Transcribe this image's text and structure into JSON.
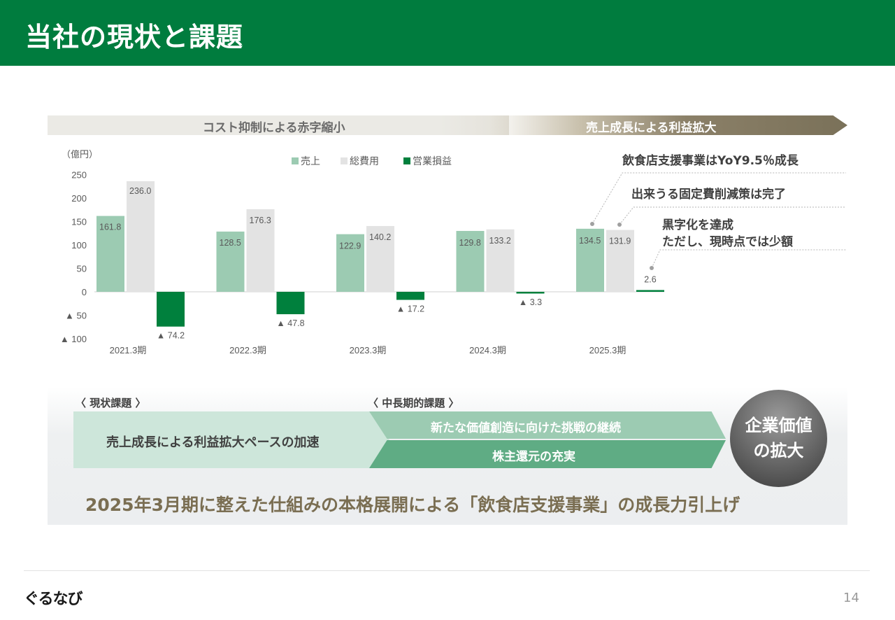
{
  "header": {
    "title": "当社の現状と課題"
  },
  "banner": {
    "left_label": "コスト抑制による赤字縮小",
    "right_label": "売上成長による利益拡大"
  },
  "annotations": {
    "a1": "飲食店支援事業はYoY9.5％成長",
    "a2": "出来うる固定費削減策は完了",
    "a3_line1": "黒字化を達成",
    "a3_line2": "ただし、現時点では少額"
  },
  "panel": {
    "current_issue_label": "〈 現状課題 〉",
    "mid_issue_label": "〈 中長期的課題 〉",
    "box_left": "売上成長による利益拡大ペースの加速",
    "box_top": "新たな価値創造に向けた挑戦の継続",
    "box_bottom": "株主還元の充実",
    "circle_line1": "企業価値",
    "circle_line2": "の拡大",
    "message": "2025年3月期に整えた仕組みの本格展開による「飲食店支援事業」の成長力引上げ"
  },
  "footer": {
    "logo": "ぐるなび",
    "page": "14"
  },
  "colors": {
    "header": "#007c3e",
    "sales": "#9ccbb2",
    "cost": "#e3e3e3",
    "op": "#00803d"
  },
  "chart_data": {
    "type": "bar",
    "unit_label": "（億円）",
    "categories": [
      "2021.3期",
      "2022.3期",
      "2023.3期",
      "2024.3期",
      "2025.3期"
    ],
    "series": [
      {
        "name": "売上",
        "values": [
          161.8,
          128.5,
          122.9,
          129.8,
          134.5
        ],
        "labels": [
          "161.8",
          "128.5",
          "122.9",
          "129.8",
          "134.5"
        ]
      },
      {
        "name": "総費用",
        "values": [
          236.0,
          176.3,
          140.2,
          133.2,
          131.9
        ],
        "labels": [
          "236.0",
          "176.3",
          "140.2",
          "133.2",
          "131.9"
        ]
      },
      {
        "name": "営業損益",
        "values": [
          -74.2,
          -47.8,
          -17.2,
          -3.3,
          2.6
        ],
        "labels": [
          "▲ 74.2",
          "▲ 47.8",
          "▲ 17.2",
          "▲ 3.3",
          "2.6"
        ]
      }
    ],
    "yticks": [
      250,
      200,
      150,
      100,
      50,
      0,
      -50,
      -100
    ],
    "ytick_labels": [
      "250",
      "200",
      "150",
      "100",
      "50",
      "0",
      "▲ 50",
      "▲ 100"
    ],
    "ylim": [
      -100,
      250
    ],
    "grid": false,
    "legend_position": "top"
  }
}
